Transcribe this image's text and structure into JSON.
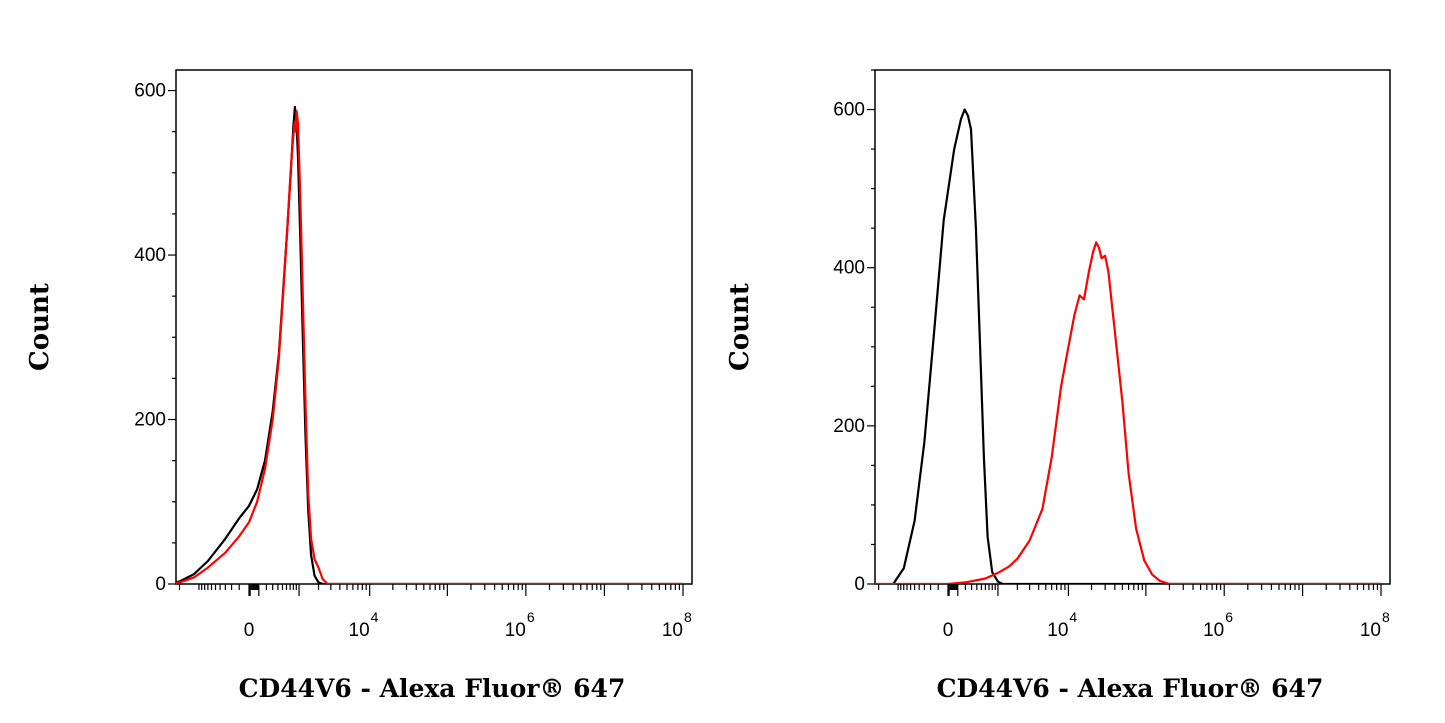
{
  "chart_data": [
    {
      "type": "line",
      "xlabel": "CD44V6 - Alexa Fluor® 647",
      "ylabel": "Count",
      "x_scale": "biexponential",
      "ylim": [
        0,
        625
      ],
      "y_ticks": [
        {
          "value": 0,
          "label": "0"
        },
        {
          "value": 200,
          "label": "200"
        },
        {
          "value": 400,
          "label": "400"
        },
        {
          "value": 600,
          "label": "600"
        }
      ],
      "x_ticks": [
        {
          "value": 0,
          "base": "0",
          "exp": ""
        },
        {
          "value": 10000,
          "base": "10",
          "exp": "4"
        },
        {
          "value": 1000000,
          "base": "10",
          "exp": "6"
        },
        {
          "value": 100000000,
          "base": "10",
          "exp": "8"
        }
      ],
      "series": [
        {
          "color": "#000000",
          "points": [
            [
              -3000,
              0
            ],
            [
              -2000,
              3
            ],
            [
              -1200,
              12
            ],
            [
              -700,
              28
            ],
            [
              -300,
              55
            ],
            [
              -100,
              80
            ],
            [
              0,
              95
            ],
            [
              80,
              115
            ],
            [
              180,
              150
            ],
            [
              300,
              210
            ],
            [
              420,
              280
            ],
            [
              520,
              360
            ],
            [
              620,
              430
            ],
            [
              720,
              500
            ],
            [
              800,
              555
            ],
            [
              850,
              580
            ],
            [
              900,
              565
            ],
            [
              960,
              520
            ],
            [
              1050,
              420
            ],
            [
              1150,
              300
            ],
            [
              1270,
              180
            ],
            [
              1400,
              90
            ],
            [
              1550,
              35
            ],
            [
              1750,
              10
            ],
            [
              2000,
              2
            ],
            [
              2300,
              0
            ],
            [
              100000000,
              0
            ]
          ]
        },
        {
          "color": "#ff0000",
          "points": [
            [
              -3000,
              0
            ],
            [
              -2000,
              2
            ],
            [
              -1200,
              8
            ],
            [
              -700,
              20
            ],
            [
              -300,
              38
            ],
            [
              -100,
              58
            ],
            [
              0,
              75
            ],
            [
              80,
              100
            ],
            [
              180,
              140
            ],
            [
              300,
              200
            ],
            [
              420,
              275
            ],
            [
              520,
              355
            ],
            [
              620,
              430
            ],
            [
              720,
              505
            ],
            [
              800,
              545
            ],
            [
              850,
              562
            ],
            [
              880,
              550
            ],
            [
              910,
              575
            ],
            [
              960,
              560
            ],
            [
              1050,
              470
            ],
            [
              1150,
              350
            ],
            [
              1270,
              220
            ],
            [
              1400,
              110
            ],
            [
              1550,
              55
            ],
            [
              1750,
              30
            ],
            [
              2000,
              20
            ],
            [
              2300,
              6
            ],
            [
              2700,
              0
            ],
            [
              100000000,
              0
            ]
          ]
        }
      ]
    },
    {
      "type": "line",
      "xlabel": "CD44V6 - Alexa Fluor® 647",
      "ylabel": "Count",
      "x_scale": "biexponential",
      "ylim": [
        0,
        650
      ],
      "y_ticks": [
        {
          "value": 0,
          "label": "0"
        },
        {
          "value": 200,
          "label": "200"
        },
        {
          "value": 400,
          "label": "400"
        },
        {
          "value": 600,
          "label": "600"
        }
      ],
      "x_ticks": [
        {
          "value": 0,
          "base": "0",
          "exp": ""
        },
        {
          "value": 10000,
          "base": "10",
          "exp": "4"
        },
        {
          "value": 1000000,
          "base": "10",
          "exp": "6"
        },
        {
          "value": 100000000,
          "base": "10",
          "exp": "8"
        }
      ],
      "series": [
        {
          "color": "#000000",
          "points": [
            [
              -1200,
              0
            ],
            [
              -800,
              20
            ],
            [
              -500,
              80
            ],
            [
              -300,
              180
            ],
            [
              -150,
              320
            ],
            [
              -40,
              460
            ],
            [
              60,
              550
            ],
            [
              140,
              588
            ],
            [
              190,
              600
            ],
            [
              240,
              592
            ],
            [
              290,
              575
            ],
            [
              380,
              450
            ],
            [
              470,
              300
            ],
            [
              560,
              160
            ],
            [
              660,
              60
            ],
            [
              800,
              15
            ],
            [
              1000,
              3
            ],
            [
              1200,
              0
            ],
            [
              100000000,
              0
            ]
          ]
        },
        {
          "color": "#ff0000",
          "points": [
            [
              -3000,
              0
            ],
            [
              0,
              0
            ],
            [
              200,
              2
            ],
            [
              600,
              7
            ],
            [
              1000,
              14
            ],
            [
              1500,
              22
            ],
            [
              2000,
              32
            ],
            [
              3000,
              55
            ],
            [
              4500,
              95
            ],
            [
              6000,
              160
            ],
            [
              8000,
              250
            ],
            [
              10000,
              300
            ],
            [
              12000,
              340
            ],
            [
              14000,
              365
            ],
            [
              16000,
              360
            ],
            [
              18500,
              395
            ],
            [
              21000,
              420
            ],
            [
              23000,
              432
            ],
            [
              25000,
              425
            ],
            [
              27000,
              412
            ],
            [
              30000,
              415
            ],
            [
              33000,
              395
            ],
            [
              37000,
              350
            ],
            [
              42000,
              300
            ],
            [
              50000,
              230
            ],
            [
              60000,
              140
            ],
            [
              75000,
              70
            ],
            [
              95000,
              30
            ],
            [
              120000,
              12
            ],
            [
              150000,
              4
            ],
            [
              200000,
              0
            ],
            [
              100000000,
              0
            ]
          ]
        }
      ]
    }
  ]
}
